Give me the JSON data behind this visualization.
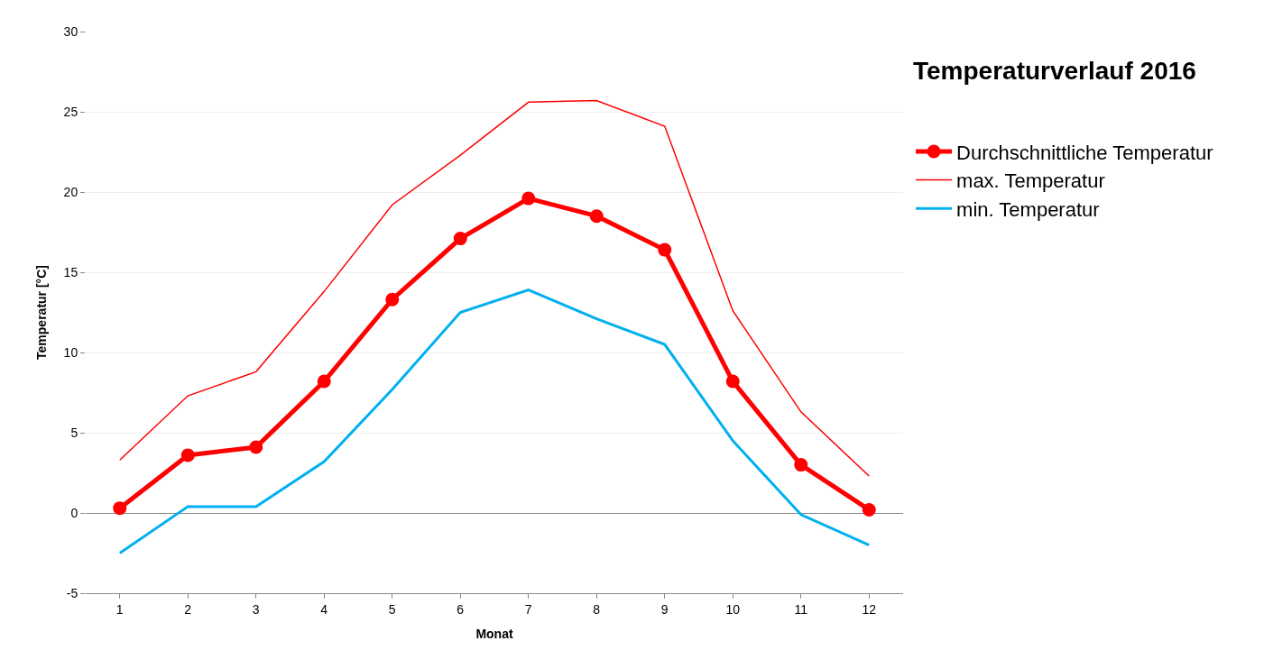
{
  "chart_data": {
    "type": "line",
    "title": "Temperaturverlauf 2016",
    "xlabel": "Monat",
    "ylabel": "Temperatur [°C]",
    "x": [
      1,
      2,
      3,
      4,
      5,
      6,
      7,
      8,
      9,
      10,
      11,
      12
    ],
    "series": [
      {
        "name": "Durchschnittliche Temperatur",
        "color": "#ff0000",
        "marker": "circle",
        "values": [
          0.3,
          3.6,
          4.1,
          8.2,
          13.3,
          17.1,
          19.6,
          18.5,
          16.4,
          8.2,
          3.0,
          0.2
        ]
      },
      {
        "name": "max. Temperatur",
        "color": "#ff0000",
        "marker": "none",
        "values": [
          3.3,
          7.3,
          8.8,
          13.8,
          19.2,
          22.3,
          25.6,
          25.7,
          24.1,
          12.6,
          6.3,
          2.3
        ]
      },
      {
        "name": "min. Temperatur",
        "color": "#00b0f0",
        "marker": "none",
        "values": [
          -2.5,
          0.4,
          0.4,
          3.2,
          7.7,
          12.5,
          13.9,
          12.1,
          10.5,
          4.5,
          -0.1,
          -2.0
        ]
      }
    ],
    "xlim": [
      0.5,
      12.5
    ],
    "xticks": [
      1,
      2,
      3,
      4,
      5,
      6,
      7,
      8,
      9,
      10,
      11,
      12
    ],
    "ylim": [
      -5,
      30
    ],
    "yticks": [
      -5,
      0,
      5,
      10,
      15,
      20,
      25,
      30
    ],
    "grid": "y",
    "legend": "right"
  }
}
